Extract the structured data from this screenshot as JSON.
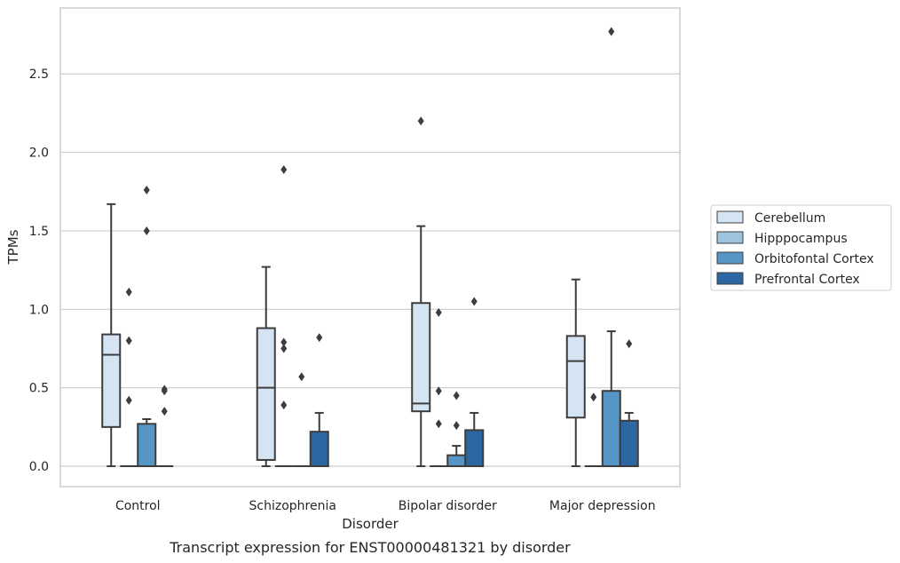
{
  "chart_data": {
    "type": "box",
    "caption": "Transcript expression for ENST00000481321 by disorder",
    "xlabel": "Disorder",
    "ylabel": "TPMs",
    "ylim": [
      -0.13,
      2.92
    ],
    "yticks": [
      "0.0",
      "0.5",
      "1.0",
      "1.5",
      "2.0",
      "2.5"
    ],
    "categories": [
      "Control",
      "Schizophrenia",
      "Bipolar disorder",
      "Major depression"
    ],
    "grid": "horizontal",
    "legend_position": "right",
    "series": [
      {
        "name": "Cerebellum",
        "color": "#d4e4f2",
        "boxes": [
          {
            "q1": 0.25,
            "median": 0.71,
            "q3": 0.84,
            "whisker_low": 0.0,
            "whisker_high": 1.67,
            "outliers": []
          },
          {
            "q1": 0.04,
            "median": 0.5,
            "q3": 0.88,
            "whisker_low": 0.0,
            "whisker_high": 1.27,
            "outliers": []
          },
          {
            "q1": 0.35,
            "median": 0.4,
            "q3": 1.04,
            "whisker_low": 0.0,
            "whisker_high": 1.53,
            "outliers": [
              2.2
            ]
          },
          {
            "q1": 0.31,
            "median": 0.67,
            "q3": 0.83,
            "whisker_low": 0.0,
            "whisker_high": 1.19,
            "outliers": []
          }
        ]
      },
      {
        "name": "Hipppocampus",
        "color": "#9dc4de",
        "boxes": [
          {
            "q1": 0.0,
            "median": 0.0,
            "q3": 0.0,
            "whisker_low": 0.0,
            "whisker_high": 0.0,
            "outliers": [
              0.42,
              0.8,
              1.11
            ]
          },
          {
            "q1": 0.0,
            "median": 0.0,
            "q3": 0.0,
            "whisker_low": 0.0,
            "whisker_high": 0.0,
            "outliers": [
              0.39,
              0.75,
              0.79,
              1.89
            ]
          },
          {
            "q1": 0.0,
            "median": 0.0,
            "q3": 0.0,
            "whisker_low": 0.0,
            "whisker_high": 0.0,
            "outliers": [
              0.27,
              0.48,
              0.98
            ]
          },
          {
            "q1": 0.0,
            "median": 0.0,
            "q3": 0.0,
            "whisker_low": 0.0,
            "whisker_high": 0.0,
            "outliers": [
              0.44
            ]
          }
        ]
      },
      {
        "name": "Orbitofontal Cortex",
        "color": "#5596c6",
        "boxes": [
          {
            "q1": 0.0,
            "median": 0.0,
            "q3": 0.27,
            "whisker_low": 0.0,
            "whisker_high": 0.3,
            "outliers": [
              1.5,
              1.76
            ]
          },
          {
            "q1": 0.0,
            "median": 0.0,
            "q3": 0.0,
            "whisker_low": 0.0,
            "whisker_high": 0.0,
            "outliers": [
              0.57
            ]
          },
          {
            "q1": 0.0,
            "median": 0.0,
            "q3": 0.07,
            "whisker_low": 0.0,
            "whisker_high": 0.13,
            "outliers": [
              0.26,
              0.45
            ]
          },
          {
            "q1": 0.0,
            "median": 0.0,
            "q3": 0.48,
            "whisker_low": 0.0,
            "whisker_high": 0.86,
            "outliers": [
              2.77
            ]
          }
        ]
      },
      {
        "name": "Prefrontal Cortex",
        "color": "#2c67a3",
        "boxes": [
          {
            "q1": 0.0,
            "median": 0.0,
            "q3": 0.0,
            "whisker_low": 0.0,
            "whisker_high": 0.0,
            "outliers": [
              0.35,
              0.48,
              0.49
            ]
          },
          {
            "q1": 0.0,
            "median": 0.0,
            "q3": 0.22,
            "whisker_low": 0.0,
            "whisker_high": 0.34,
            "outliers": [
              0.82
            ]
          },
          {
            "q1": 0.0,
            "median": 0.0,
            "q3": 0.23,
            "whisker_low": 0.0,
            "whisker_high": 0.34,
            "outliers": [
              1.05
            ]
          },
          {
            "q1": 0.0,
            "median": 0.0,
            "q3": 0.29,
            "whisker_low": 0.0,
            "whisker_high": 0.34,
            "outliers": [
              0.78
            ]
          }
        ]
      }
    ]
  }
}
